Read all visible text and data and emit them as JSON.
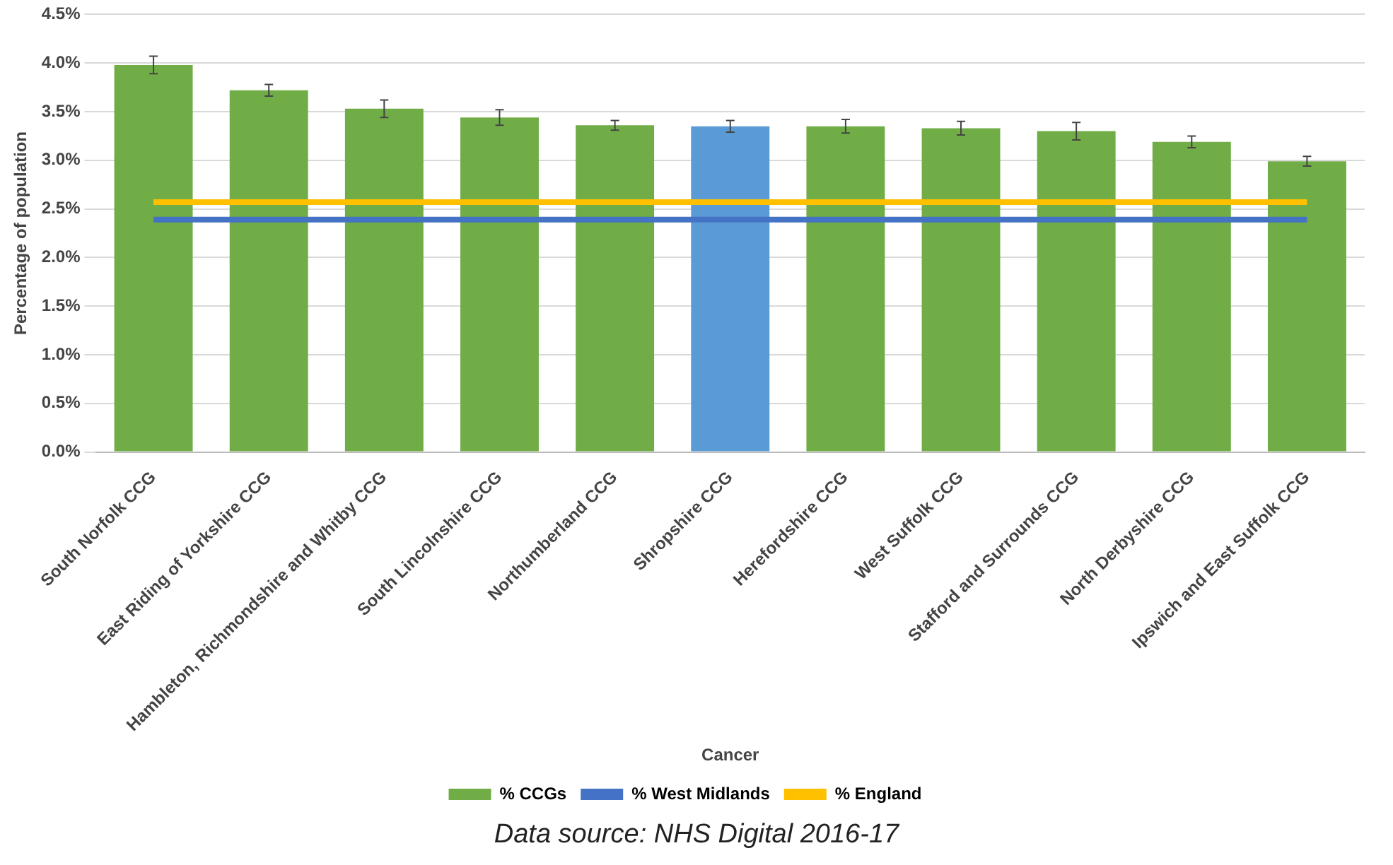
{
  "chart_data": {
    "type": "bar",
    "xlabel": "Cancer",
    "ylabel": "Percentage of population",
    "categories": [
      "South Norfolk CCG",
      "East Riding of Yorkshire CCG",
      "Hambleton, Richmondshire and Whitby CCG",
      "South Lincolnshire CCG",
      "Northumberland CCG",
      "Shropshire CCG",
      "Herefordshire CCG",
      "West Suffolk CCG",
      "Stafford and Surrounds CCG",
      "North Derbyshire CCG",
      "Ipswich and East Suffolk CCG"
    ],
    "series": [
      {
        "name": "% CCGs",
        "color": "#70ad47",
        "colors": [
          "#70ad47",
          "#70ad47",
          "#70ad47",
          "#70ad47",
          "#70ad47",
          "#5b9bd5",
          "#70ad47",
          "#70ad47",
          "#70ad47",
          "#70ad47",
          "#70ad47"
        ],
        "values": [
          3.98,
          3.72,
          3.53,
          3.44,
          3.36,
          3.35,
          3.35,
          3.33,
          3.3,
          3.19,
          2.99
        ],
        "errors": [
          0.09,
          0.06,
          0.09,
          0.08,
          0.05,
          0.06,
          0.07,
          0.07,
          0.09,
          0.06,
          0.05
        ]
      },
      {
        "name": "% West Midlands",
        "type": "line",
        "color": "#4472c4",
        "values": [
          2.39,
          2.39,
          2.39,
          2.39,
          2.39,
          2.39,
          2.39,
          2.39,
          2.39,
          2.39,
          2.39
        ]
      },
      {
        "name": "% England",
        "type": "line",
        "color": "#ffc000",
        "values": [
          2.57,
          2.57,
          2.57,
          2.57,
          2.57,
          2.57,
          2.57,
          2.57,
          2.57,
          2.57,
          2.57
        ]
      }
    ],
    "ylim": [
      0,
      4.5
    ],
    "yticks": [
      {
        "value": 0,
        "label": "0.0%"
      },
      {
        "value": 0.5,
        "label": "0.5%"
      },
      {
        "value": 1,
        "label": "1.0%"
      },
      {
        "value": 1.5,
        "label": "1.5%"
      },
      {
        "value": 2,
        "label": "2.0%"
      },
      {
        "value": 2.5,
        "label": "2.5%"
      },
      {
        "value": 3,
        "label": "3.0%"
      },
      {
        "value": 3.5,
        "label": "3.5%"
      },
      {
        "value": 4,
        "label": "4.0%"
      },
      {
        "value": 4.5,
        "label": "4.5%"
      }
    ],
    "grid": "y",
    "legend": "bottom",
    "marker": "none",
    "annotations": [
      "Data source: NHS Digital 2016-17"
    ]
  }
}
